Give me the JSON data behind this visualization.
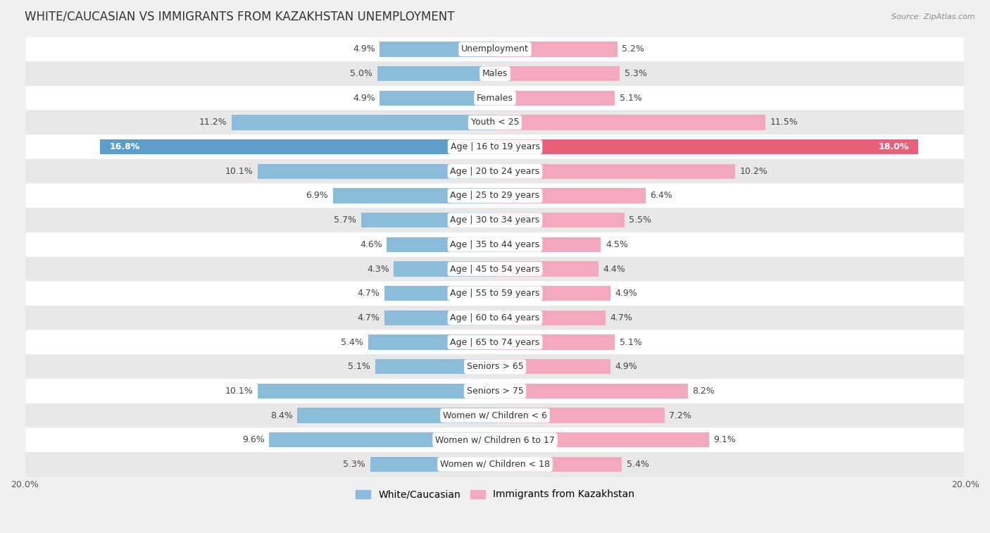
{
  "title": "WHITE/CAUCASIAN VS IMMIGRANTS FROM KAZAKHSTAN UNEMPLOYMENT",
  "source": "Source: ZipAtlas.com",
  "categories": [
    "Unemployment",
    "Males",
    "Females",
    "Youth < 25",
    "Age | 16 to 19 years",
    "Age | 20 to 24 years",
    "Age | 25 to 29 years",
    "Age | 30 to 34 years",
    "Age | 35 to 44 years",
    "Age | 45 to 54 years",
    "Age | 55 to 59 years",
    "Age | 60 to 64 years",
    "Age | 65 to 74 years",
    "Seniors > 65",
    "Seniors > 75",
    "Women w/ Children < 6",
    "Women w/ Children 6 to 17",
    "Women w/ Children < 18"
  ],
  "white_values": [
    4.9,
    5.0,
    4.9,
    11.2,
    16.8,
    10.1,
    6.9,
    5.7,
    4.6,
    4.3,
    4.7,
    4.7,
    5.4,
    5.1,
    10.1,
    8.4,
    9.6,
    5.3
  ],
  "immigrant_values": [
    5.2,
    5.3,
    5.1,
    11.5,
    18.0,
    10.2,
    6.4,
    5.5,
    4.5,
    4.4,
    4.9,
    4.7,
    5.1,
    4.9,
    8.2,
    7.2,
    9.1,
    5.4
  ],
  "white_color": "#8bbcdc",
  "immigrant_color": "#f4a8bc",
  "highlight_white_color": "#5b9ec9",
  "highlight_immigrant_color": "#e8607a",
  "x_max": 20.0,
  "background_color": "#f0f0f0",
  "row_bg_color": "#ffffff",
  "row_alt_bg_color": "#e8e8e8",
  "title_fontsize": 12,
  "label_fontsize": 9,
  "value_fontsize": 9,
  "legend_fontsize": 10,
  "highlight_idx": 4
}
